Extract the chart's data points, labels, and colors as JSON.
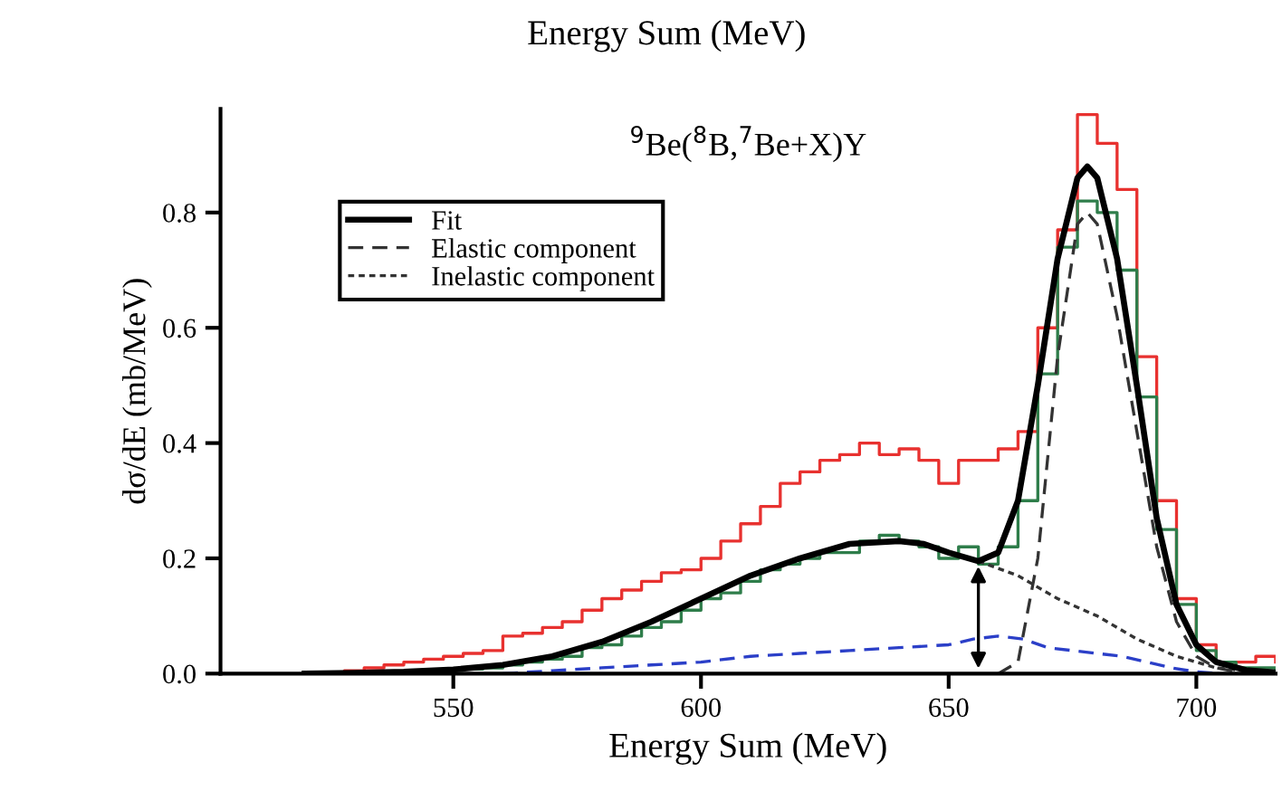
{
  "chart_data": {
    "type": "line",
    "title": "Energy Sum (MeV)",
    "xlabel": "Energy Sum (MeV)",
    "ylabel": "dσ/dE (mb/MeV)",
    "annotations": [
      "$^{9}$Be($^{8}$B,$^{7}$Be+X)Y"
    ],
    "xlim": [
      503,
      716
    ],
    "ylim": [
      0,
      0.98
    ],
    "xticks": [
      550,
      600,
      650,
      700
    ],
    "yticks": [
      {
        "value": 0,
        "label": "0.0"
      },
      {
        "value": 0.2,
        "label": "0.2"
      },
      {
        "value": 0.4,
        "label": "0.4"
      },
      {
        "value": 0.6,
        "label": "0.6"
      },
      {
        "value": 0.8,
        "label": "0.8"
      }
    ],
    "grid": false,
    "legend": "top left",
    "series": [
      {
        "type": "step",
        "color": "#e8312f",
        "line_style": "solid",
        "x": [
          520,
          524,
          528,
          532,
          536,
          540,
          544,
          548,
          552,
          556,
          560,
          564,
          568,
          572,
          576,
          580,
          584,
          588,
          592,
          596,
          600,
          604,
          608,
          612,
          616,
          620,
          624,
          628,
          632,
          636,
          640,
          644,
          648,
          652,
          656,
          660,
          664,
          668,
          672,
          676,
          680,
          684,
          688,
          692,
          696,
          700,
          704,
          708,
          712,
          716
        ],
        "values": [
          0,
          0,
          0.005,
          0.01,
          0.015,
          0.02,
          0.025,
          0.03,
          0.035,
          0.04,
          0.065,
          0.07,
          0.08,
          0.09,
          0.11,
          0.13,
          0.145,
          0.16,
          0.175,
          0.18,
          0.2,
          0.23,
          0.26,
          0.29,
          0.33,
          0.35,
          0.37,
          0.38,
          0.4,
          0.38,
          0.39,
          0.37,
          0.33,
          0.37,
          0.37,
          0.39,
          0.42,
          0.6,
          0.77,
          0.97,
          0.92,
          0.84,
          0.55,
          0.3,
          0.13,
          0.05,
          0.02,
          0.02,
          0.03,
          0.02
        ]
      },
      {
        "type": "step",
        "color": "#2e7d4a",
        "line_style": "solid",
        "x": [
          520,
          524,
          528,
          532,
          536,
          540,
          544,
          548,
          552,
          556,
          560,
          564,
          568,
          572,
          576,
          580,
          584,
          588,
          592,
          596,
          600,
          604,
          608,
          612,
          616,
          620,
          624,
          628,
          632,
          636,
          640,
          644,
          648,
          652,
          656,
          660,
          664,
          668,
          672,
          676,
          680,
          684,
          688,
          692,
          696,
          700,
          704,
          708,
          712,
          716
        ],
        "values": [
          0,
          0,
          0,
          0.002,
          0.003,
          0.004,
          0.005,
          0.006,
          0.008,
          0.01,
          0.015,
          0.02,
          0.025,
          0.03,
          0.045,
          0.05,
          0.065,
          0.08,
          0.09,
          0.11,
          0.13,
          0.14,
          0.16,
          0.18,
          0.19,
          0.2,
          0.21,
          0.21,
          0.23,
          0.24,
          0.23,
          0.22,
          0.2,
          0.22,
          0.19,
          0.22,
          0.3,
          0.52,
          0.74,
          0.82,
          0.8,
          0.7,
          0.48,
          0.25,
          0.12,
          0.04,
          0.02,
          0.01,
          0.01,
          0.005
        ]
      },
      {
        "color": "#2b3fc8",
        "line_style": "dashed",
        "x": [
          560,
          570,
          580,
          590,
          600,
          610,
          620,
          630,
          640,
          650,
          655,
          660,
          665,
          670,
          675,
          680,
          685,
          690,
          695,
          700,
          705
        ],
        "values": [
          0,
          0.005,
          0.01,
          0.015,
          0.02,
          0.03,
          0.035,
          0.04,
          0.045,
          0.05,
          0.06,
          0.065,
          0.06,
          0.045,
          0.04,
          0.035,
          0.03,
          0.02,
          0.01,
          0.003,
          0
        ]
      },
      {
        "name": "Inelastic component",
        "color": "#333333",
        "line_style": "dotted",
        "x": [
          656,
          664,
          672,
          680,
          688,
          696,
          704,
          712
        ],
        "values": [
          0.195,
          0.17,
          0.13,
          0.1,
          0.06,
          0.03,
          0.01,
          0.003
        ]
      },
      {
        "name": "Elastic component",
        "color": "#333333",
        "line_style": "dashed",
        "x": [
          660,
          664,
          668,
          672,
          676,
          678,
          680,
          684,
          688,
          692,
          696,
          700,
          704,
          710
        ],
        "values": [
          0,
          0.02,
          0.2,
          0.55,
          0.78,
          0.8,
          0.78,
          0.62,
          0.42,
          0.22,
          0.09,
          0.03,
          0.01,
          0
        ]
      },
      {
        "name": "Fit",
        "color": "#000000",
        "line_style": "solid",
        "x": [
          520,
          530,
          540,
          550,
          560,
          570,
          580,
          590,
          600,
          610,
          620,
          630,
          640,
          645,
          650,
          656,
          660,
          664,
          668,
          672,
          676,
          678,
          680,
          684,
          688,
          692,
          696,
          700,
          704,
          710,
          716
        ],
        "values": [
          0,
          0.001,
          0.003,
          0.007,
          0.015,
          0.03,
          0.055,
          0.09,
          0.13,
          0.17,
          0.2,
          0.225,
          0.23,
          0.225,
          0.21,
          0.195,
          0.21,
          0.3,
          0.5,
          0.72,
          0.86,
          0.88,
          0.86,
          0.72,
          0.5,
          0.27,
          0.12,
          0.05,
          0.02,
          0.006,
          0.002
        ]
      }
    ]
  }
}
